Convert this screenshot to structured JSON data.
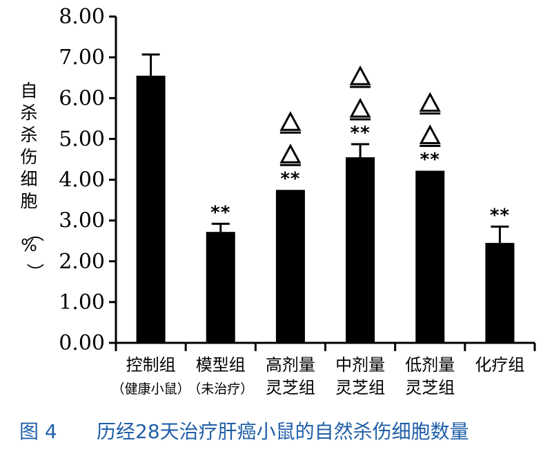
{
  "caption": {
    "figure_label": "图 4",
    "title": "历经28天治疗肝癌小鼠的自然杀伤细胞数量"
  },
  "chart_data": {
    "type": "bar",
    "ylabel_chars": [
      "自",
      "杀",
      "杀",
      "伤",
      "细",
      "胞",
      "（",
      "%",
      "）"
    ],
    "ylim": [
      0,
      8
    ],
    "yticks": [
      "0.00",
      "1.00",
      "2.00",
      "3.00",
      "4.00",
      "5.00",
      "6.00",
      "7.00",
      "8.00"
    ],
    "grid": false,
    "colors": {
      "bar": "#000000",
      "axis": "#000000"
    },
    "categories": [
      {
        "lines": [
          "控制组",
          "（健康小鼠）"
        ],
        "small_second": true
      },
      {
        "lines": [
          "模型组",
          "（未治疗）"
        ],
        "small_second": true
      },
      {
        "lines": [
          "高剂量",
          "灵芝组"
        ],
        "small_second": false
      },
      {
        "lines": [
          "中剂量",
          "灵芝组"
        ],
        "small_second": false
      },
      {
        "lines": [
          "低剂量",
          "灵芝组"
        ],
        "small_second": false
      },
      {
        "lines": [
          "化疗组"
        ],
        "small_second": false
      }
    ],
    "values": [
      6.55,
      2.72,
      3.75,
      4.55,
      4.22,
      2.45
    ],
    "errors": [
      0.52,
      0.2,
      0.0,
      0.32,
      0.0,
      0.4
    ],
    "significance": [
      "",
      "**",
      "**",
      "**",
      "**",
      "**"
    ],
    "triangles": [
      0,
      0,
      2,
      2,
      2,
      0
    ],
    "triangle_symbol": "△"
  }
}
